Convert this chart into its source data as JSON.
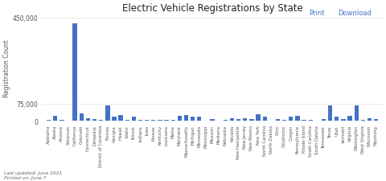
{
  "title": "Electric Vehicle Registrations by State",
  "ylabel": "Registration Count",
  "states": [
    "Alabama",
    "Alaska",
    "Arizona",
    "Arkansas",
    "California",
    "Colorado",
    "Connecticut",
    "Delaware",
    "District of Columbia",
    "Florida",
    "Georgia",
    "Hawaii",
    "Idaho",
    "Illinois",
    "Indiana",
    "Iowa",
    "Kansas",
    "Kentucky",
    "Louisiana",
    "Maine",
    "Maryland",
    "Massachusetts",
    "Michigan",
    "Minnesota",
    "Mississippi",
    "Missouri",
    "Montana",
    "Nebraska",
    "Nevada",
    "New Hampshire",
    "New Jersey",
    "New Mexico",
    "New York",
    "North Carolina",
    "North Dakota",
    "Ohio",
    "Oklahoma",
    "Oregon",
    "Pennsylvania",
    "Rhode Island",
    "South Carolina",
    "South Dakota",
    "Tennessee",
    "Texas",
    "Utah",
    "Vermont",
    "Virginia",
    "Washington",
    "West Virginia",
    "Wisconsin",
    "Wyoming"
  ],
  "values": [
    2500,
    22000,
    5000,
    1200,
    425000,
    30000,
    11000,
    6500,
    3000,
    65000,
    18000,
    25000,
    5000,
    18000,
    4000,
    3000,
    2500,
    2500,
    2000,
    3000,
    22000,
    26000,
    16000,
    17000,
    1000,
    7000,
    1500,
    3500,
    11000,
    5500,
    12000,
    5500,
    28000,
    16000,
    1200,
    8000,
    3500,
    16000,
    20000,
    4000,
    3500,
    1000,
    6000,
    65000,
    17000,
    7000,
    20000,
    68000,
    3000,
    10000,
    6000
  ],
  "bar_color": "#4472C4",
  "ylim": [
    0,
    460000
  ],
  "yticks": [
    0,
    75000,
    450000
  ],
  "ytick_labels": [
    "0",
    "75,000",
    "450,000"
  ],
  "background_color": "#ffffff",
  "note_line1": "Last updated: June 2021",
  "note_line2": "Printed on: June 7",
  "print_label": "Print",
  "download_label": "Download",
  "link_color": "#4472C4",
  "grid_color": "#e0e0e0",
  "title_fontsize": 8.5,
  "ylabel_fontsize": 5.5,
  "ytick_fontsize": 5.5,
  "xtick_fontsize": 3.8,
  "note_fontsize": 4.2,
  "link_fontsize": 6.0
}
